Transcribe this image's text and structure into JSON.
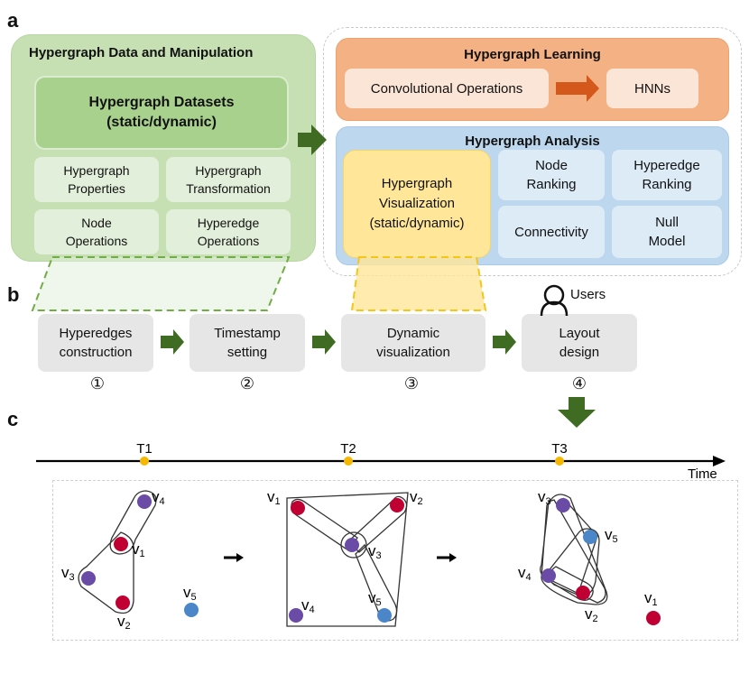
{
  "panel_labels": {
    "a": "a",
    "b": "b",
    "c": "c"
  },
  "data_manipulation": {
    "title": "Hypergraph Data and Manipulation",
    "datasets_line1": "Hypergraph Datasets",
    "datasets_line2": "(static/dynamic)",
    "cells": [
      {
        "line1": "Hypergraph",
        "line2": "Properties"
      },
      {
        "line1": "Hypergraph",
        "line2": "Transformation"
      },
      {
        "line1": "Node",
        "line2": "Operations"
      },
      {
        "line1": "Hyperedge",
        "line2": "Operations"
      }
    ]
  },
  "learning": {
    "title": "Hypergraph Learning",
    "conv": "Convolutional Operations",
    "hnns": "HNNs"
  },
  "analysis": {
    "title": "Hypergraph Analysis",
    "viz_line1": "Hypergraph",
    "viz_line2": "Visualization",
    "viz_line3": "(static/dynamic)",
    "cells": [
      {
        "line1": "Node",
        "line2": "Ranking"
      },
      {
        "line1": "Hyperedge",
        "line2": "Ranking"
      },
      {
        "line1": "Connectivity",
        "line2": ""
      },
      {
        "line1": "Null",
        "line2": "Model"
      }
    ]
  },
  "pipeline": {
    "users": "Users",
    "steps": [
      {
        "line1": "Hyperedges",
        "line2": "construction",
        "num": "①"
      },
      {
        "line1": "Timestamp",
        "line2": "setting",
        "num": "②"
      },
      {
        "line1": "Dynamic",
        "line2": "visualization",
        "num": "③"
      },
      {
        "line1": "Layout",
        "line2": "design",
        "num": "④"
      }
    ]
  },
  "timeline": {
    "axis_label": "Time",
    "ticks": [
      "T1",
      "T2",
      "T3"
    ]
  },
  "snapshots": {
    "node_letter": "v",
    "t1_subs": [
      "4",
      "1",
      "3",
      "2",
      "5"
    ],
    "t2_subs": [
      "1",
      "2",
      "3",
      "4",
      "5"
    ],
    "t3_subs": [
      "3",
      "5",
      "4",
      "2",
      "1"
    ]
  },
  "colors": {
    "green_arrow": "#3f6b22",
    "orange_arrow": "#d4581b",
    "node_red": "#c00032",
    "node_purple": "#6a4ba6",
    "node_blue": "#4a86c8",
    "timeline_dot": "#f5b800",
    "green_dash": "#70ad47",
    "yellow_dash": "#f5c518"
  }
}
